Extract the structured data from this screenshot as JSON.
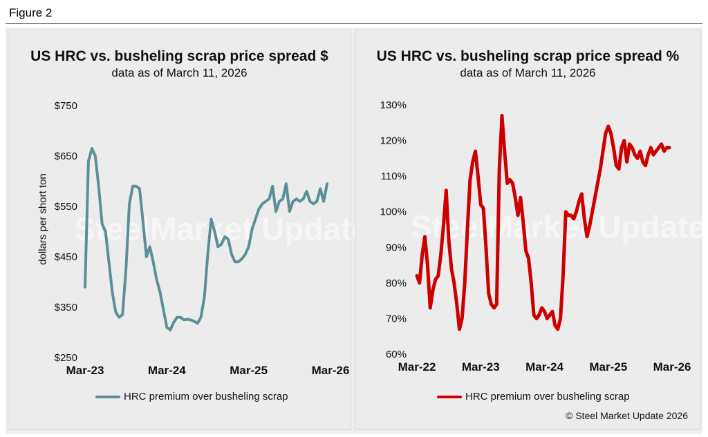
{
  "figure_label": "Figure 2",
  "copyright": "© Steel Market Update 2026",
  "watermark": "SteelMarket Update",
  "colors": {
    "left_series": "#5b8f96",
    "right_series": "#cc0000"
  },
  "chart_data": [
    {
      "type": "line",
      "title": "US HRC vs. busheling scrap price spread $",
      "subtitle": "data as of March 11, 2026",
      "ylabel": "dollars per short ton",
      "ylim": [
        250,
        750
      ],
      "yticks": [
        "$750",
        "$650",
        "$550",
        "$450",
        "$350",
        "$250"
      ],
      "ytick_values": [
        750,
        650,
        550,
        450,
        350,
        250
      ],
      "xtick_labels": [
        "Mar-23",
        "Mar-24",
        "Mar-25",
        "Mar-26"
      ],
      "xtick_positions": [
        0,
        12,
        24,
        36
      ],
      "xlim": [
        0,
        36
      ],
      "series": [
        {
          "name": "HRC premium over busheling scrap",
          "x": [
            0,
            0.5,
            1,
            1.5,
            2,
            2.5,
            3,
            3.5,
            4,
            4.5,
            5,
            5.5,
            6,
            6.5,
            7,
            7.5,
            8,
            8.5,
            9,
            9.5,
            10,
            10.5,
            11,
            11.5,
            12,
            12.5,
            13,
            13.5,
            14,
            14.5,
            15,
            15.5,
            16,
            16.5,
            17,
            17.5,
            18,
            18.5,
            19,
            19.5,
            20,
            20.5,
            21,
            21.5,
            22,
            22.5,
            23,
            23.5,
            24,
            24.5,
            25,
            25.5,
            26,
            26.5,
            27,
            27.5,
            28,
            28.5,
            29,
            29.5,
            30,
            30.5,
            31,
            31.5,
            32,
            32.5,
            33,
            33.5,
            34,
            34.5,
            35,
            35.5
          ],
          "values": [
            390,
            640,
            665,
            650,
            590,
            515,
            500,
            440,
            380,
            340,
            330,
            335,
            425,
            555,
            590,
            590,
            585,
            520,
            450,
            470,
            440,
            405,
            380,
            345,
            310,
            305,
            320,
            330,
            330,
            325,
            326,
            325,
            322,
            318,
            330,
            370,
            455,
            525,
            500,
            470,
            475,
            490,
            485,
            455,
            440,
            440,
            446,
            455,
            470,
            505,
            525,
            545,
            555,
            560,
            565,
            590,
            540,
            560,
            565,
            595,
            540,
            560,
            565,
            560,
            565,
            580,
            560,
            555,
            560,
            585,
            560,
            595
          ]
        }
      ]
    },
    {
      "type": "line",
      "title": "US HRC vs. busheling scrap price spread %",
      "subtitle": "data as of March 11, 2026",
      "ylabel": "",
      "ylim": [
        60,
        130
      ],
      "yticks": [
        "130%",
        "120%",
        "110%",
        "100%",
        "90%",
        "80%",
        "70%",
        "60%"
      ],
      "ytick_values": [
        130,
        120,
        110,
        100,
        90,
        80,
        70,
        60
      ],
      "xtick_labels": [
        "Mar-22",
        "Mar-23",
        "Mar-24",
        "Mar-25",
        "Mar-26"
      ],
      "xtick_positions": [
        0,
        12,
        24,
        36,
        48
      ],
      "xlim": [
        0,
        48
      ],
      "series": [
        {
          "name": "HRC premium over busheling scrap",
          "x": [
            0,
            0.5,
            1,
            1.5,
            2,
            2.5,
            3,
            3.5,
            4,
            4.5,
            5,
            5.5,
            6,
            6.5,
            7,
            7.5,
            8,
            8.5,
            9,
            9.5,
            10,
            10.5,
            11,
            11.5,
            12,
            12.5,
            13,
            13.5,
            14,
            14.5,
            15,
            15.5,
            16,
            16.5,
            17,
            17.5,
            18,
            18.5,
            19,
            19.5,
            20,
            20.5,
            21,
            21.5,
            22,
            22.5,
            23,
            23.5,
            24,
            24.5,
            25,
            25.5,
            26,
            26.5,
            27,
            27.5,
            28,
            28.5,
            29,
            29.5,
            30,
            30.5,
            31,
            31.5,
            32,
            32.5,
            33,
            33.5,
            34,
            34.5,
            35,
            35.5,
            36,
            36.5,
            37,
            37.5,
            38,
            38.5,
            39,
            39.5,
            40,
            40.5,
            41,
            41.5,
            42,
            42.5,
            43,
            43.5,
            44,
            44.5,
            45,
            45.5,
            46,
            46.5,
            47,
            47.5
          ],
          "values": [
            82,
            80,
            88,
            93,
            85,
            73,
            78,
            81,
            82,
            88,
            96,
            106,
            92,
            84,
            80,
            74,
            67,
            70,
            80,
            95,
            109,
            114,
            117,
            110,
            102,
            101,
            90,
            77,
            74,
            73,
            74,
            112,
            127,
            117,
            108,
            109,
            108,
            104,
            99,
            104,
            97,
            89,
            87,
            80,
            71,
            70,
            71,
            73,
            72,
            70,
            71,
            72,
            68,
            67,
            70,
            82,
            100,
            99,
            99,
            98,
            100,
            103,
            105,
            98,
            93,
            96,
            100,
            104,
            108,
            112,
            117,
            122,
            124,
            122,
            118,
            113,
            112,
            118,
            120,
            114,
            119,
            118,
            116,
            115,
            117,
            114,
            113,
            116,
            118,
            116,
            117,
            118,
            119,
            117,
            118,
            118
          ]
        }
      ]
    }
  ]
}
